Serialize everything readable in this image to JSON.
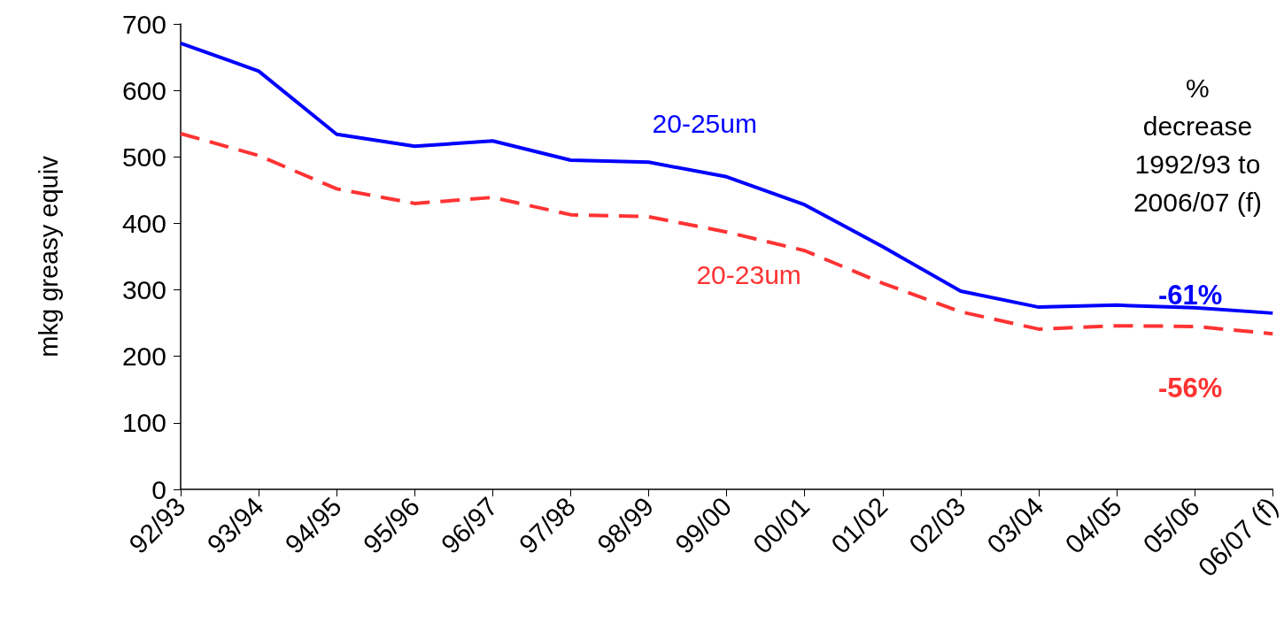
{
  "chart_data": {
    "type": "line",
    "ylabel": "mkg greasy equiv",
    "categories": [
      "92/93",
      "93/94",
      "94/95",
      "95/96",
      "96/97",
      "97/98",
      "98/99",
      "99/00",
      "00/01",
      "01/02",
      "02/03",
      "03/04",
      "04/05",
      "05/06",
      "06/07 (f)"
    ],
    "series": [
      {
        "name": "20-25um",
        "color": "#0000ff",
        "line_style": "solid",
        "values": [
          671,
          629,
          534,
          516,
          524,
          495,
          492,
          470,
          428,
          365,
          298,
          274,
          277,
          273,
          265
        ]
      },
      {
        "name": "20-23um",
        "color": "#ff3333",
        "line_style": "dashed",
        "values": [
          535,
          502,
          452,
          430,
          439,
          413,
          410,
          387,
          359,
          310,
          267,
          241,
          246,
          245,
          234
        ]
      }
    ],
    "ylim": [
      0,
      700
    ],
    "yticks": [
      0,
      100,
      200,
      300,
      400,
      500,
      600,
      700
    ],
    "grid": false,
    "legend": false,
    "marker": "none",
    "annotations": [
      "%\ndecrease\n1992/93 to\n2006/07 (f)",
      "-61%",
      "-56%"
    ]
  }
}
